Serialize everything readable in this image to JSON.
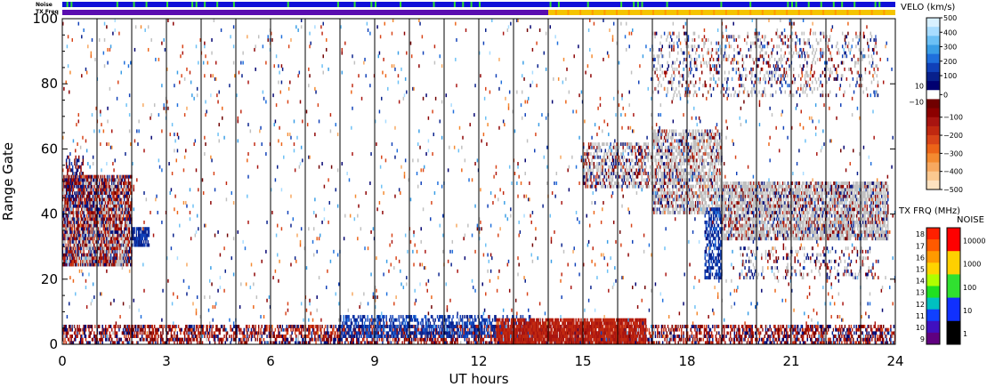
{
  "chart_data": {
    "type": "heatmap",
    "xlabel": "UT hours",
    "ylabel": "Range Gate",
    "xlim": [
      0,
      24
    ],
    "ylim": [
      0,
      100
    ],
    "x_ticks": [
      "0",
      "3",
      "6",
      "9",
      "12",
      "15",
      "18",
      "21",
      "24"
    ],
    "y_ticks": [
      "0",
      "20",
      "40",
      "60",
      "80",
      "100"
    ],
    "scan_boundaries_ut": [
      1.0,
      2.0,
      3.0,
      4.0,
      5.0,
      6.0,
      7.0,
      8.0,
      9.0,
      10.0,
      11.0,
      12.0,
      13.0,
      14.0,
      15.0,
      16.0,
      17.0,
      18.0,
      19.0,
      20.0,
      21.0,
      22.0,
      23.0
    ],
    "strip_labels": {
      "noise": "Noise",
      "txfreq": "TX Freq"
    },
    "tx_freq_strip": [
      {
        "x0": 0,
        "x1": 14.0,
        "color": "#5a0db0"
      },
      {
        "x0": 14.0,
        "x1": 24,
        "color": "#f5c400"
      }
    ],
    "velocity_colorbar": {
      "title": "VELO (km/s)",
      "ticks": [
        "500",
        "400",
        "300",
        "200",
        "100",
        "0",
        "−100",
        "−200",
        "−300",
        "−400",
        "−500"
      ],
      "side_labels": [
        "10",
        "−10"
      ],
      "colors": [
        "#d8f0ff",
        "#a8dcff",
        "#6cc0f5",
        "#3a9ee6",
        "#1f6fdc",
        "#1040b8",
        "#08208c",
        "#000070",
        "#ffffff",
        "#700000",
        "#8c0000",
        "#a81410",
        "#c02810",
        "#d84418",
        "#ec6418",
        "#f48a30",
        "#f7a860",
        "#fbc890",
        "#fde2c0"
      ]
    },
    "txfreq_colorbar": {
      "title": "TX FRQ (MHz)",
      "ticks": [
        "18",
        "17",
        "16",
        "15",
        "14",
        "13",
        "12",
        "11",
        "10",
        "9"
      ],
      "colors": [
        "#ff2000",
        "#ff5a00",
        "#ff9a00",
        "#ffd400",
        "#b0ff00",
        "#20e020",
        "#00c0c0",
        "#1040ff",
        "#4010c0",
        "#600080"
      ]
    },
    "noise_colorbar": {
      "title": "NOISE",
      "ticks": [
        "10000",
        "1000",
        "100",
        "10",
        "1"
      ],
      "colors": [
        "#ff0000",
        "#ffd000",
        "#30e030",
        "#1030ff",
        "#000000"
      ]
    },
    "ground_scatter_color": "#c0c0c0",
    "echo_regions": [
      {
        "x": [
          0.0,
          2.0
        ],
        "gate": [
          24,
          52
        ],
        "kind": "mixed",
        "ground_scatter": 0.3,
        "density": 0.9,
        "velocity": [
          -250,
          120
        ]
      },
      {
        "x": [
          0.1,
          0.6
        ],
        "gate": [
          44,
          58
        ],
        "kind": "mixed",
        "ground_scatter": 0.0,
        "density": 0.5,
        "velocity": [
          -150,
          150
        ]
      },
      {
        "x": [
          2.0,
          2.5
        ],
        "gate": [
          30,
          36
        ],
        "kind": "mixed",
        "ground_scatter": 0.0,
        "density": 0.85,
        "velocity": [
          80,
          150
        ]
      },
      {
        "x": [
          0.0,
          24.0
        ],
        "gate": [
          0,
          6
        ],
        "kind": "mixed",
        "ground_scatter": 0.02,
        "density": 0.55,
        "velocity": [
          -250,
          100
        ]
      },
      {
        "x": [
          8.0,
          13.5
        ],
        "gate": [
          2,
          9
        ],
        "kind": "mixed",
        "ground_scatter": 0.0,
        "density": 0.45,
        "velocity": [
          80,
          200
        ]
      },
      {
        "x": [
          12.5,
          16.8
        ],
        "gate": [
          0,
          8
        ],
        "kind": "mixed",
        "ground_scatter": 0.0,
        "density": 0.85,
        "velocity": [
          -220,
          -120
        ]
      },
      {
        "x": [
          15.0,
          17.0
        ],
        "gate": [
          48,
          62
        ],
        "kind": "mixed",
        "ground_scatter": 0.55,
        "density": 0.5,
        "velocity": [
          -220,
          150
        ]
      },
      {
        "x": [
          17.0,
          19.0
        ],
        "gate": [
          40,
          66
        ],
        "kind": "mixed",
        "ground_scatter": 0.7,
        "density": 0.6,
        "velocity": [
          -220,
          150
        ]
      },
      {
        "x": [
          18.5,
          19.0
        ],
        "gate": [
          20,
          42
        ],
        "kind": "mixed",
        "ground_scatter": 0.0,
        "density": 0.55,
        "velocity": [
          60,
          200
        ]
      },
      {
        "x": [
          19.0,
          23.8
        ],
        "gate": [
          32,
          50
        ],
        "kind": "mixed",
        "ground_scatter": 0.7,
        "density": 0.75,
        "velocity": [
          -200,
          150
        ]
      },
      {
        "x": [
          19.5,
          23.5
        ],
        "gate": [
          20,
          30
        ],
        "kind": "mixed",
        "ground_scatter": 0.4,
        "density": 0.2,
        "velocity": [
          -150,
          150
        ]
      },
      {
        "x": [
          17.0,
          23.5
        ],
        "gate": [
          76,
          96
        ],
        "kind": "mixed",
        "ground_scatter": 0.5,
        "density": 0.18,
        "velocity": [
          -200,
          200
        ]
      },
      {
        "x": [
          0.0,
          24.0
        ],
        "gate": [
          0,
          100
        ],
        "kind": "mixed",
        "ground_scatter": 0.1,
        "density": 0.022,
        "velocity": [
          -400,
          400
        ]
      }
    ]
  }
}
